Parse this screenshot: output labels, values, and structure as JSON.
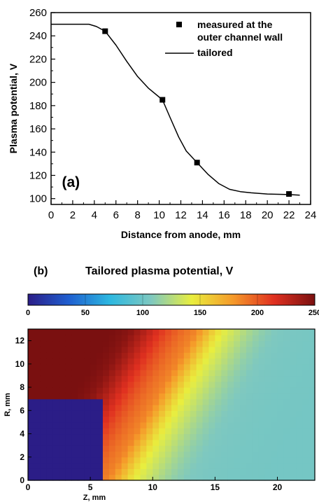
{
  "chart_data": [
    {
      "type": "line",
      "panel_label": "(a)",
      "xlabel": "Distance from anode, mm",
      "ylabel": "Plasma potential, V",
      "xlim": [
        0,
        24
      ],
      "ylim": [
        95,
        260
      ],
      "xticks": [
        0,
        2,
        4,
        6,
        8,
        10,
        12,
        14,
        16,
        18,
        20,
        22,
        24
      ],
      "yticks": [
        100,
        120,
        140,
        160,
        180,
        200,
        220,
        240,
        260
      ],
      "grid": false,
      "legend_position": "top-right",
      "series": [
        {
          "name": "measured at the outer channel wall",
          "style": "square-markers",
          "color": "#000000",
          "x": [
            5,
            10.3,
            13.5,
            22
          ],
          "y": [
            244,
            185,
            131,
            104
          ]
        },
        {
          "name": "tailored",
          "style": "line",
          "color": "#000000",
          "x": [
            0,
            3.5,
            4.2,
            5,
            6,
            7,
            8,
            9,
            10.3,
            11,
            11.8,
            12.5,
            13.5,
            14.5,
            15.5,
            16.5,
            17.5,
            18.5,
            20,
            22,
            23
          ],
          "y": [
            250,
            250,
            248,
            244,
            232,
            218,
            205,
            195,
            185,
            170,
            153,
            141,
            131,
            121,
            113,
            108,
            106,
            105,
            104,
            103.5,
            103
          ]
        }
      ]
    },
    {
      "type": "heatmap",
      "panel_label": "(b)",
      "title": "Tailored plasma potential, V",
      "xlabel": "Z, mm",
      "ylabel": "R, mm",
      "xlim": [
        0,
        23
      ],
      "ylim": [
        0,
        13
      ],
      "xticks": [
        0,
        5,
        10,
        15,
        20
      ],
      "yticks": [
        0,
        2,
        4,
        6,
        8,
        10,
        12
      ],
      "colorbar": {
        "min": 0,
        "max": 250,
        "ticks": [
          0,
          50,
          100,
          150,
          200,
          250
        ],
        "colors": [
          "#2b1d87",
          "#1f5fd0",
          "#2db8e0",
          "#7ec8c0",
          "#e9ee3e",
          "#f59a2a",
          "#e03020",
          "#7a1010"
        ]
      },
      "model": "value = 250 at z=0 decreasing to 103 downstream; transition front curving from z~9 at R=13 to z~6 at R=5; value 0 in block z<6, R<7",
      "block": {
        "z_max": 6,
        "r_max": 7,
        "value": 0
      },
      "profile_z": [
        0,
        3.5,
        4.2,
        5,
        6,
        7,
        8,
        9,
        10.3,
        11,
        11.8,
        12.5,
        13.5,
        14.5,
        15.5,
        16.5,
        17.5,
        18.5,
        20,
        22,
        23
      ],
      "profile_v": [
        250,
        250,
        248,
        244,
        232,
        218,
        205,
        195,
        185,
        170,
        153,
        141,
        131,
        121,
        113,
        108,
        106,
        105,
        104,
        103.5,
        103
      ]
    }
  ]
}
